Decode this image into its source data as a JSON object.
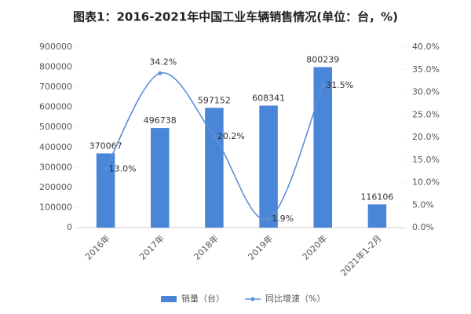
{
  "chart_data": {
    "type": "bar",
    "title": "图表1：2016-2021年中国工业车辆销售情况(单位：台，%)",
    "categories": [
      "2016年",
      "2017年",
      "2018年",
      "2019年",
      "2020年",
      "2021年1-2月"
    ],
    "series": [
      {
        "name": "销量（台）",
        "color": "#4a86d8",
        "values": [
          370067,
          496738,
          597152,
          608341,
          800239,
          116106
        ]
      },
      {
        "name": "同比增速（%）",
        "color": "#5b8fd6",
        "axis": "y2",
        "values": [
          13.0,
          34.2,
          20.2,
          1.9,
          31.5,
          null
        ],
        "value_labels": [
          "13.0%",
          "34.2%",
          "20.2%",
          "1.9%",
          "31.5%",
          null
        ]
      }
    ],
    "ylim": [
      0,
      900000
    ],
    "yticks": [
      0,
      100000,
      200000,
      300000,
      400000,
      500000,
      600000,
      700000,
      800000,
      900000
    ],
    "y2lim": [
      0,
      40
    ],
    "y2ticks": [
      {
        "value": 0,
        "label": "0.0%"
      },
      {
        "value": 5,
        "label": "5.0%"
      },
      {
        "value": 10,
        "label": "10.0%"
      },
      {
        "value": 15,
        "label": "15.0%"
      },
      {
        "value": 20,
        "label": "20.0%"
      },
      {
        "value": 25,
        "label": "25.0%"
      },
      {
        "value": 30,
        "label": "30.0%"
      },
      {
        "value": 35,
        "label": "35.0%"
      },
      {
        "value": 40,
        "label": "40.0%"
      }
    ],
    "grid": false
  }
}
